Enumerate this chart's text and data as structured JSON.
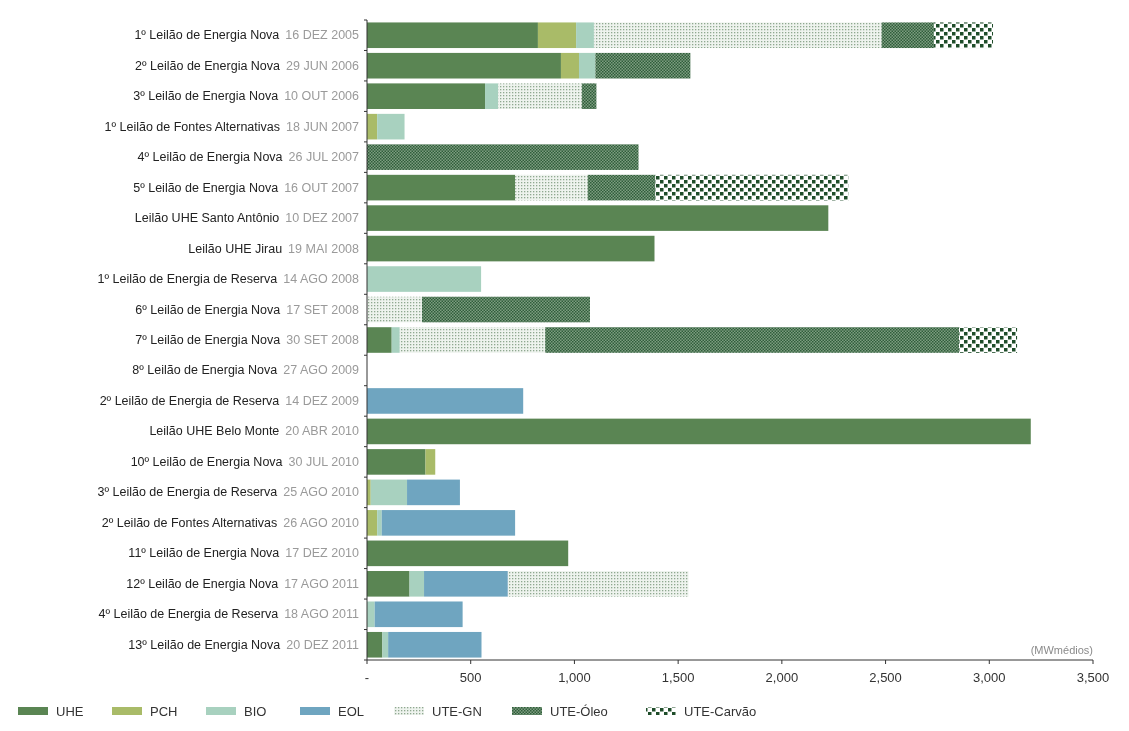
{
  "chart_data": {
    "type": "bar",
    "orientation": "horizontal",
    "stacked": true,
    "categories": [
      "1º Leilão de Energia Nova  16 DEZ 2005",
      "2º Leilão de Energia Nova  29 JUN 2006",
      "3º Leilão de Energia Nova  10 OUT 2006",
      "1º Leilão de Fontes Alternativas  18 JUN 2007",
      "4º Leilão de Energia Nova  26 JUL 2007",
      "5º Leilão de Energia Nova  16 OUT 2007",
      "Leilão UHE Santo Antônio  10 DEZ 2007",
      "Leilão UHE Jirau  19 MAI 2008",
      "1º Leilão de Energia de Reserva  14 AGO 2008",
      "6º Leilão de Energia Nova  17 SET 2008",
      "7º Leilão de Energia Nova  30 SET 2008",
      "8º Leilão de Energia Nova  27 AGO 2009",
      "2º Leilão de Energia de Reserva  14 DEZ 2009",
      "Leilão UHE Belo Monte  20 ABR 2010",
      "10º Leilão de Energia Nova  30 JUL 2010",
      "3º Leilão de Energia de Reserva  25 AGO 2010",
      "2º Leilão de Fontes Alternativas  26 AGO 2010",
      "11º Leilão de Energia Nova  17 DEZ 2010",
      "12º Leilão de Energia Nova  17 AGO 2011",
      "4º Leilão de Energia de Reserva  18 AGO 2011",
      "13º Leilão de Energia Nova  20 DEZ 2011"
    ],
    "series": [
      {
        "name": "UHE",
        "color": "#5a8553",
        "values": [
          824,
          935,
          569,
          null,
          null,
          714,
          2224,
          1386,
          null,
          null,
          119,
          null,
          null,
          3200,
          282,
          null,
          null,
          970,
          205,
          null,
          74
        ]
      },
      {
        "name": "PCH",
        "color": "#a9bb68",
        "values": [
          184,
          87,
          null,
          49,
          null,
          null,
          null,
          null,
          null,
          null,
          null,
          null,
          null,
          null,
          47,
          18,
          49,
          null,
          null,
          null,
          null
        ]
      },
      {
        "name": "BIO",
        "color": "#a8d1bf",
        "values": [
          86,
          79,
          63,
          132,
          null,
          null,
          null,
          null,
          550,
          null,
          39,
          null,
          null,
          null,
          null,
          175,
          22,
          null,
          70,
          37,
          28
        ]
      },
      {
        "name": "EOL",
        "color": "#6fa5c0",
        "values": [
          null,
          null,
          null,
          null,
          null,
          null,
          null,
          null,
          null,
          null,
          null,
          null,
          753,
          null,
          null,
          255,
          643,
          null,
          404,
          424,
          450
        ]
      },
      {
        "name": "UTE-GN",
        "color": "#8fa890",
        "values": [
          1387,
          null,
          404,
          null,
          null,
          350,
          null,
          null,
          null,
          265,
          701,
          null,
          null,
          null,
          null,
          null,
          null,
          null,
          871,
          null,
          null
        ]
      },
      {
        "name": "UTE-Óleo",
        "color": "#2f5e3a",
        "values": [
          252,
          458,
          70,
          null,
          1309,
          326,
          null,
          null,
          null,
          810,
          1995,
          null,
          null,
          null,
          null,
          null,
          null,
          null,
          null,
          null,
          null
        ]
      },
      {
        "name": "UTE-Carvão",
        "color": "#1f4d2a",
        "values": [
          285,
          null,
          null,
          null,
          null,
          930,
          null,
          null,
          null,
          null,
          280,
          null,
          null,
          null,
          null,
          null,
          null,
          null,
          null,
          null,
          null
        ]
      }
    ],
    "xlim": [
      0,
      3500
    ],
    "xticks": [
      {
        "value": 0,
        "label": "-"
      },
      500,
      {
        "value": 1000,
        "label": "1,000"
      },
      {
        "value": 1500,
        "label": "1,500"
      },
      {
        "value": 2000,
        "label": "2,000"
      },
      {
        "value": 2500,
        "label": "2,500"
      },
      {
        "value": 3000,
        "label": "3,000"
      },
      {
        "value": 3500,
        "label": "3,500"
      }
    ],
    "annotations": [
      "(MWmédios)"
    ],
    "legend": "bottom left"
  }
}
